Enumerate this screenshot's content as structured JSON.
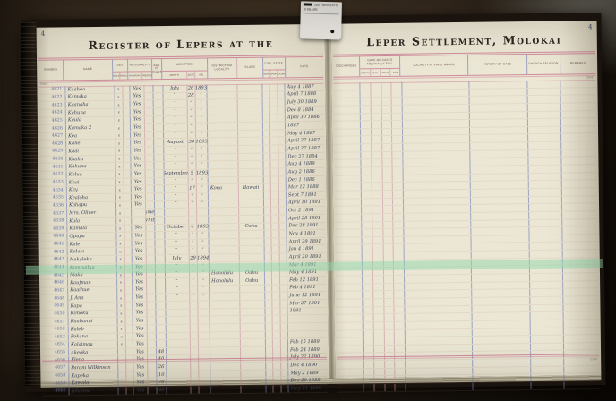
{
  "photo_tag": {
    "line1": "260 HANSEN'S",
    "line2": "DISEASE"
  },
  "colors": {
    "page_cream": "#e9e4d1",
    "rule_pink": "#c97b91",
    "rule_blue": "#98a2cd",
    "highlight_green": "#8fd8ac",
    "ink": "#3e4356",
    "printed_number_blue": "#6570a8"
  },
  "book": {
    "left_page": {
      "page_number": "4",
      "title": "Register of Lepers at the",
      "extra_label": "Extra",
      "headers": {
        "number": "Number",
        "name": "Name",
        "sex": {
          "label": "Sex",
          "subs": [
            "Male",
            "Female"
          ]
        },
        "nationality": {
          "label": "Nationality",
          "subs": [
            "Hawaiian",
            "Foreigner"
          ]
        },
        "age": "Age in Years",
        "admitted": {
          "label": "Admitted",
          "subs": [
            "Month",
            "Date",
            "A.D."
          ]
        },
        "district": "District or Locality",
        "island": "Island",
        "civil": {
          "label": "Civil State",
          "subs": [
            "Married",
            "Unmarried",
            "Widowed"
          ]
        },
        "date": "Date"
      },
      "rows": [
        [
          "4621",
          "Kaahea",
          "x",
          "",
          "Yes",
          "",
          "",
          "July",
          "26",
          "1893",
          "",
          "",
          "",
          "",
          "",
          "Aug 4 1887"
        ],
        [
          "4622",
          "Kamaka",
          "x",
          "",
          "Yes",
          "",
          "",
          "″",
          "28",
          "″",
          "",
          "",
          "",
          "",
          "",
          "April 7 1888"
        ],
        [
          "4623",
          "Kaanaha",
          "x",
          "",
          "Yes",
          "",
          "",
          "″",
          "″",
          "″",
          "",
          "",
          "",
          "",
          "",
          "July 30 1889"
        ],
        [
          "4624",
          "Kahuna",
          "x",
          "",
          "Yes",
          "",
          "",
          "″",
          "″",
          "″",
          "",
          "",
          "",
          "",
          "",
          "Dec 8 1884"
        ],
        [
          "4625",
          "Kaula",
          "x",
          "",
          "Yes",
          "",
          "",
          "″",
          "″",
          "″",
          "",
          "",
          "",
          "",
          "",
          "April 30 1886"
        ],
        [
          "4626",
          "Kamaka 2",
          "x",
          "",
          "Yes",
          "",
          "",
          "″",
          "″",
          "″",
          "",
          "",
          "",
          "",
          "",
          "1887"
        ],
        [
          "4627",
          "Kea",
          "x",
          "",
          "Yes",
          "",
          "",
          "″",
          "″",
          "″",
          "",
          "",
          "",
          "",
          "",
          "May 4 1887"
        ],
        [
          "4628",
          "Kane",
          "x",
          "",
          "Yes",
          "",
          "",
          "August",
          "30",
          "1893",
          "",
          "",
          "",
          "",
          "",
          "April 27 1887"
        ],
        [
          "4629",
          "Kaai",
          "x",
          "",
          "Yes",
          "",
          "",
          "″",
          "″",
          "″",
          "",
          "",
          "",
          "",
          "",
          "April 27 1887"
        ],
        [
          "4630",
          "Kaahu",
          "x",
          "",
          "Yes",
          "",
          "",
          "″",
          "″",
          "″",
          "",
          "",
          "",
          "",
          "",
          "Dec 27 1884"
        ],
        [
          "4631",
          "Kahuna",
          "x",
          "",
          "Yes",
          "",
          "",
          "″",
          "″",
          "″",
          "",
          "",
          "",
          "",
          "",
          "Aug 4 1889"
        ],
        [
          "4632",
          "Kalua",
          "x",
          "",
          "Yes",
          "",
          "",
          "September",
          "5",
          "1893",
          "",
          "",
          "",
          "",
          "",
          "Aug 2 1886"
        ],
        [
          "4633",
          "Kaai",
          "x",
          "",
          "Yes",
          "",
          "",
          "″",
          "″",
          "″",
          "",
          "",
          "",
          "",
          "",
          "Dec 1 1886"
        ],
        [
          "4634",
          "Kay",
          "x",
          "",
          "Yes",
          "",
          "",
          "″",
          "17",
          "″",
          "Kona",
          "Hawaii",
          "",
          "",
          "",
          "Mar 12 1888"
        ],
        [
          "4635",
          "Kealoha",
          "x",
          "",
          "Yes",
          "",
          "",
          "″",
          "″",
          "″",
          "",
          "",
          "",
          "",
          "",
          "Sept 7 1891"
        ],
        [
          "4636",
          "Kahapu",
          "x",
          "",
          "Yes",
          "",
          "",
          "″",
          "″",
          "″",
          "",
          "",
          "",
          "",
          "",
          "April 10 1891"
        ],
        [
          "4637",
          "Mrs. Oliver",
          "x",
          "",
          "",
          "Amer",
          "",
          "",
          "",
          "",
          "",
          "",
          "",
          "",
          "",
          "Oct 2 1891"
        ],
        [
          "4638",
          "Kula",
          "x",
          "",
          "",
          "White",
          "",
          "",
          "",
          "",
          "",
          "",
          "",
          "",
          "",
          "April 28 1891"
        ],
        [
          "4639",
          "Kamala",
          "x",
          "",
          "Yes",
          "",
          "",
          "October",
          "4",
          "1893",
          "",
          "Oahu",
          "",
          "",
          "",
          "Dec 28 1891"
        ],
        [
          "4640",
          "Opupa",
          "x",
          "",
          "Yes",
          "",
          "",
          "″",
          "″",
          "″",
          "",
          "",
          "",
          "",
          "",
          "Nov 4 1891"
        ],
        [
          "4641",
          "Kale",
          "x",
          "",
          "Yes",
          "",
          "",
          "″",
          "″",
          "″",
          "",
          "",
          "",
          "",
          "",
          "April 29 1891"
        ],
        [
          "4642",
          "Kalala",
          "x",
          "",
          "Yes",
          "",
          "",
          "″",
          "″",
          "″",
          "",
          "",
          "",
          "",
          "",
          "Jan 4 1891"
        ],
        [
          "4643",
          "Nakaleka",
          "x",
          "",
          "Yes",
          "",
          "",
          "July",
          "29",
          "1894",
          "",
          "",
          "",
          "",
          "",
          "April 20 1891"
        ],
        [
          "4644",
          "Komoailua",
          "x",
          "",
          "Yes",
          "",
          "",
          "″",
          "″",
          "″",
          "",
          "",
          "",
          "",
          "",
          "Mar 4 1891"
        ],
        [
          "4645",
          "Maka",
          "x",
          "",
          "Yes",
          "",
          "",
          "″",
          "″",
          "″",
          "Honolulu",
          "Oahu",
          "",
          "",
          "",
          "May 4 1891"
        ],
        [
          "4646",
          "Kaufman",
          "x",
          "",
          "Yes",
          "",
          "",
          "″",
          "″",
          "″",
          "Honolulu",
          "Oahu",
          "",
          "",
          "",
          "Feb 12 1891"
        ],
        [
          "4647",
          "Kaaihue",
          "x",
          "",
          "Yes",
          "",
          "",
          "″",
          "″",
          "″",
          "",
          "",
          "",
          "",
          "",
          "Feb 4 1891"
        ],
        [
          "4648",
          "J. Ana",
          "x",
          "",
          "Yes",
          "",
          "",
          "″",
          "″",
          "″",
          "",
          "",
          "",
          "",
          "",
          "June 12 1891"
        ],
        [
          "4649",
          "Kapa",
          "x",
          "",
          "Yes",
          "",
          "",
          "",
          "",
          "",
          "",
          "",
          "",
          "",
          "",
          "Mar 27 1891"
        ],
        [
          "4650",
          "Kimoku",
          "x",
          "",
          "Yes",
          "",
          "",
          "",
          "",
          "",
          "",
          "",
          "",
          "",
          "",
          "1891"
        ],
        [
          "4651",
          "Kaahanui",
          "x",
          "",
          "Yes",
          "",
          "",
          "",
          "",
          "",
          "",
          "",
          "",
          "",
          "",
          ""
        ],
        [
          "4652",
          "Kaleb",
          "x",
          "",
          "Yes",
          "",
          "",
          "",
          "",
          "",
          "",
          "",
          "",
          "",
          "",
          ""
        ],
        [
          "4653",
          "Pokana",
          "x",
          "",
          "Yes",
          "",
          "",
          "",
          "",
          "",
          "",
          "",
          "",
          "",
          "",
          ""
        ],
        [
          "4654",
          "Kalaimou",
          "x",
          "",
          "Yes",
          "",
          "",
          "",
          "",
          "",
          "",
          "",
          "",
          "",
          "",
          "Feb 15 1889"
        ],
        [
          "4655",
          "Akeaka",
          "",
          "",
          "Yes",
          "",
          "48",
          "",
          "",
          "",
          "",
          "",
          "",
          "",
          "",
          "Feb 24 1889"
        ],
        [
          "4656",
          "Elena",
          "",
          "",
          "Yes",
          "",
          "40",
          "",
          "",
          "",
          "",
          "",
          "",
          "",
          "",
          "July 22 1890"
        ],
        [
          "4657",
          "Param Wilkinson",
          "",
          "",
          "Yes",
          "",
          "26",
          "",
          "",
          "",
          "",
          "",
          "",
          "",
          "",
          "Dec 4 1890"
        ],
        [
          "4658",
          "Kapeka",
          "",
          "",
          "Yes",
          "",
          "10",
          "",
          "",
          "",
          "",
          "",
          "",
          "",
          "",
          "May 2 1889"
        ],
        [
          "4659",
          "Kamala",
          "",
          "",
          "Yes",
          "",
          "70",
          "",
          "",
          "",
          "",
          "",
          "",
          "",
          "",
          "Dec 20 1888"
        ],
        [
          "4660",
          "Johanna",
          "",
          "",
          "Yes",
          "",
          "48",
          "",
          "",
          "",
          "",
          "",
          "",
          "",
          "",
          "May 21 1889"
        ]
      ],
      "highlighted_row_number": "4647"
    },
    "right_page": {
      "page_number": "4",
      "title": "Leper Settlement, Molokai",
      "extra_label": "Extra",
      "headers": {
        "discharged": "Discharged",
        "medically": {
          "label": "Date of Cases Medically Exd.",
          "subs": [
            "Month",
            "Day",
            "Year",
            "Age"
          ]
        },
        "locality": "Locality at First Abode",
        "history": "History of Case",
        "church": "Church Relation",
        "remarks": "Remarks"
      },
      "rows_blank_count": 40
    }
  }
}
